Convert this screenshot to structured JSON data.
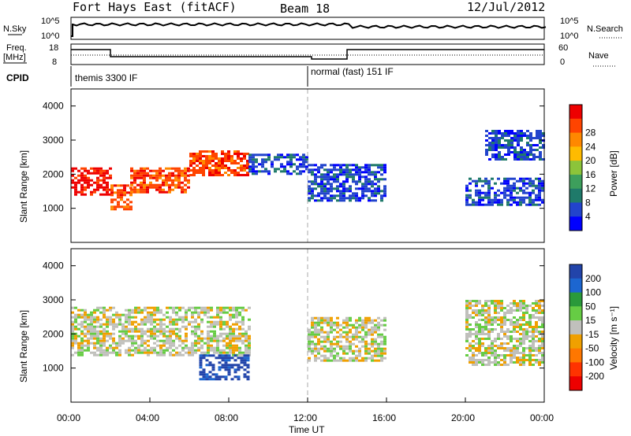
{
  "header": {
    "station": "Fort Hays East (fitACF)",
    "beam": "Beam 18",
    "date": "12/Jul/2012"
  },
  "sky_panel": {
    "left_label": "N.Sky",
    "right_label": "N.Search",
    "left_ticks": [
      "10^5",
      "10^0"
    ],
    "right_ticks": [
      "10^5",
      "10^0"
    ]
  },
  "freq_panel": {
    "left_label_1": "Freq.",
    "left_label_2": "[MHz]",
    "right_label": "Nave",
    "left_ticks": [
      "18",
      "8"
    ],
    "right_ticks": [
      "60",
      "0"
    ]
  },
  "cpid_panel": {
    "label": "CPID",
    "modes": [
      "themis 3300 IF",
      "normal (fast) 151 IF"
    ]
  },
  "colors": {
    "power_scale": [
      "#0000ff",
      "#2244cc",
      "#1f7a6a",
      "#3d9f5c",
      "#8cc43a",
      "#ffbb00",
      "#ff8800",
      "#ff4400",
      "#ee0000"
    ],
    "velocity_scale": [
      "#2244aa",
      "#1c66d0",
      "#2a9a3a",
      "#66cc44",
      "#c0c0bc",
      "#f0a000",
      "#ff7700",
      "#ff3300",
      "#ee0000"
    ]
  },
  "chart_data": [
    {
      "type": "heatmap",
      "name": "power",
      "ylabel": "Slant Range [km]",
      "yticks": [
        "1000",
        "2000",
        "3000",
        "4000"
      ],
      "ylim": [
        0,
        4500
      ],
      "colorbar_label": "Power [dB]",
      "colorbar_ticks": [
        "4",
        "8",
        "12",
        "16",
        "20",
        "24",
        "28"
      ],
      "bands": [
        {
          "x": [
            0,
            2
          ],
          "y": [
            1400,
            2200
          ],
          "level": 8
        },
        {
          "x": [
            2,
            3
          ],
          "y": [
            1000,
            1700
          ],
          "level": 7
        },
        {
          "x": [
            3,
            6
          ],
          "y": [
            1500,
            2200
          ],
          "level": 7
        },
        {
          "x": [
            6,
            9
          ],
          "y": [
            2000,
            2700
          ],
          "level": 7
        },
        {
          "x": [
            9,
            12
          ],
          "y": [
            2000,
            2600
          ],
          "level": 1
        },
        {
          "x": [
            12,
            16
          ],
          "y": [
            1200,
            2300
          ],
          "level": 1
        },
        {
          "x": [
            20,
            24
          ],
          "y": [
            1100,
            1900
          ],
          "level": 1
        },
        {
          "x": [
            21,
            24
          ],
          "y": [
            2400,
            3300
          ],
          "level": 1
        }
      ]
    },
    {
      "type": "heatmap",
      "name": "velocity",
      "ylabel": "Slant Range [km]",
      "yticks": [
        "1000",
        "2000",
        "3000",
        "4000"
      ],
      "ylim": [
        0,
        4500
      ],
      "colorbar_label": "Velocity [m s⁻¹]",
      "colorbar_ticks": [
        "200",
        "100",
        "50",
        "15",
        "-15",
        "-50",
        "-100",
        "-200"
      ],
      "bands": [
        {
          "x": [
            0,
            9
          ],
          "y": [
            1400,
            2800
          ],
          "level": 4
        },
        {
          "x": [
            6.5,
            9
          ],
          "y": [
            700,
            1400
          ],
          "level": 0
        },
        {
          "x": [
            12,
            16
          ],
          "y": [
            1200,
            2500
          ],
          "level": 4
        },
        {
          "x": [
            20,
            24
          ],
          "y": [
            1100,
            3000
          ],
          "level": 4
        }
      ],
      "xlabel": "Time UT",
      "xticks": [
        "00:00",
        "04:00",
        "08:00",
        "12:00",
        "16:00",
        "20:00",
        "00:00"
      ]
    }
  ]
}
